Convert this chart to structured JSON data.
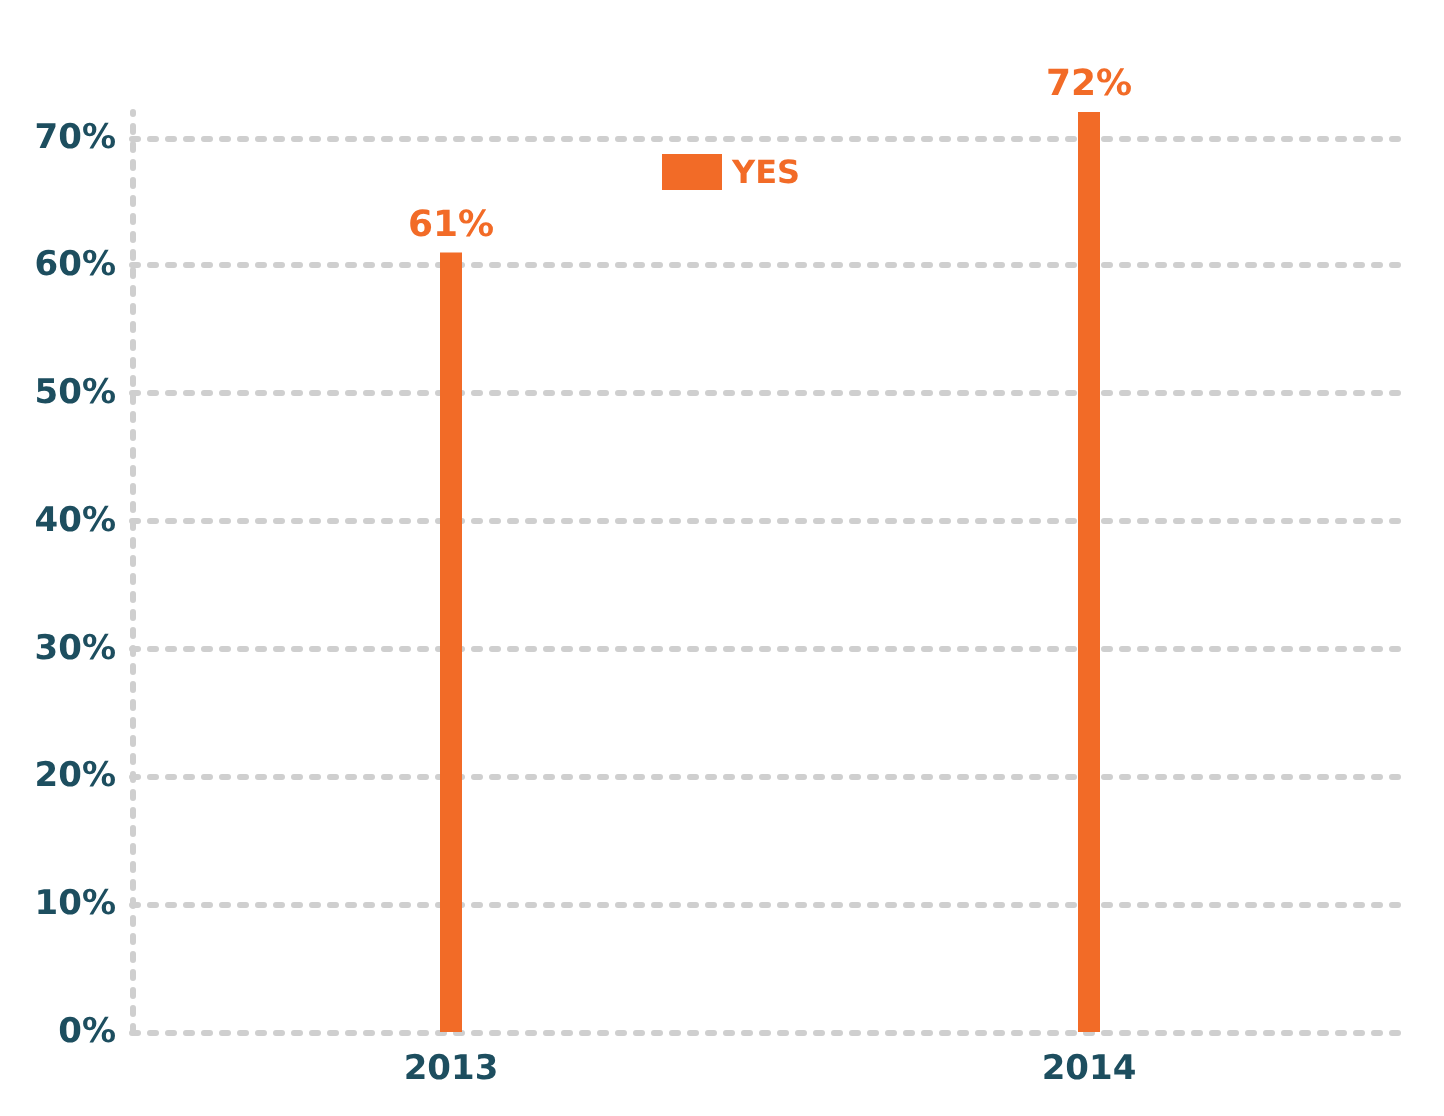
{
  "chart_data": {
    "type": "bar",
    "categories": [
      "2013",
      "2014"
    ],
    "series": [
      {
        "name": "YES",
        "color": "#f26b27",
        "values": [
          61,
          72
        ],
        "value_labels": [
          "61%",
          "72%"
        ]
      }
    ],
    "ylim": [
      0,
      72
    ],
    "yticks": [
      {
        "value": 0,
        "label": "0%"
      },
      {
        "value": 10,
        "label": "10%"
      },
      {
        "value": 20,
        "label": "20%"
      },
      {
        "value": 30,
        "label": "30%"
      },
      {
        "value": 40,
        "label": "40%"
      },
      {
        "value": 50,
        "label": "50%"
      },
      {
        "value": 60,
        "label": "60%"
      },
      {
        "value": 70,
        "label": "70%"
      }
    ],
    "grid": "y",
    "legend": "top"
  }
}
